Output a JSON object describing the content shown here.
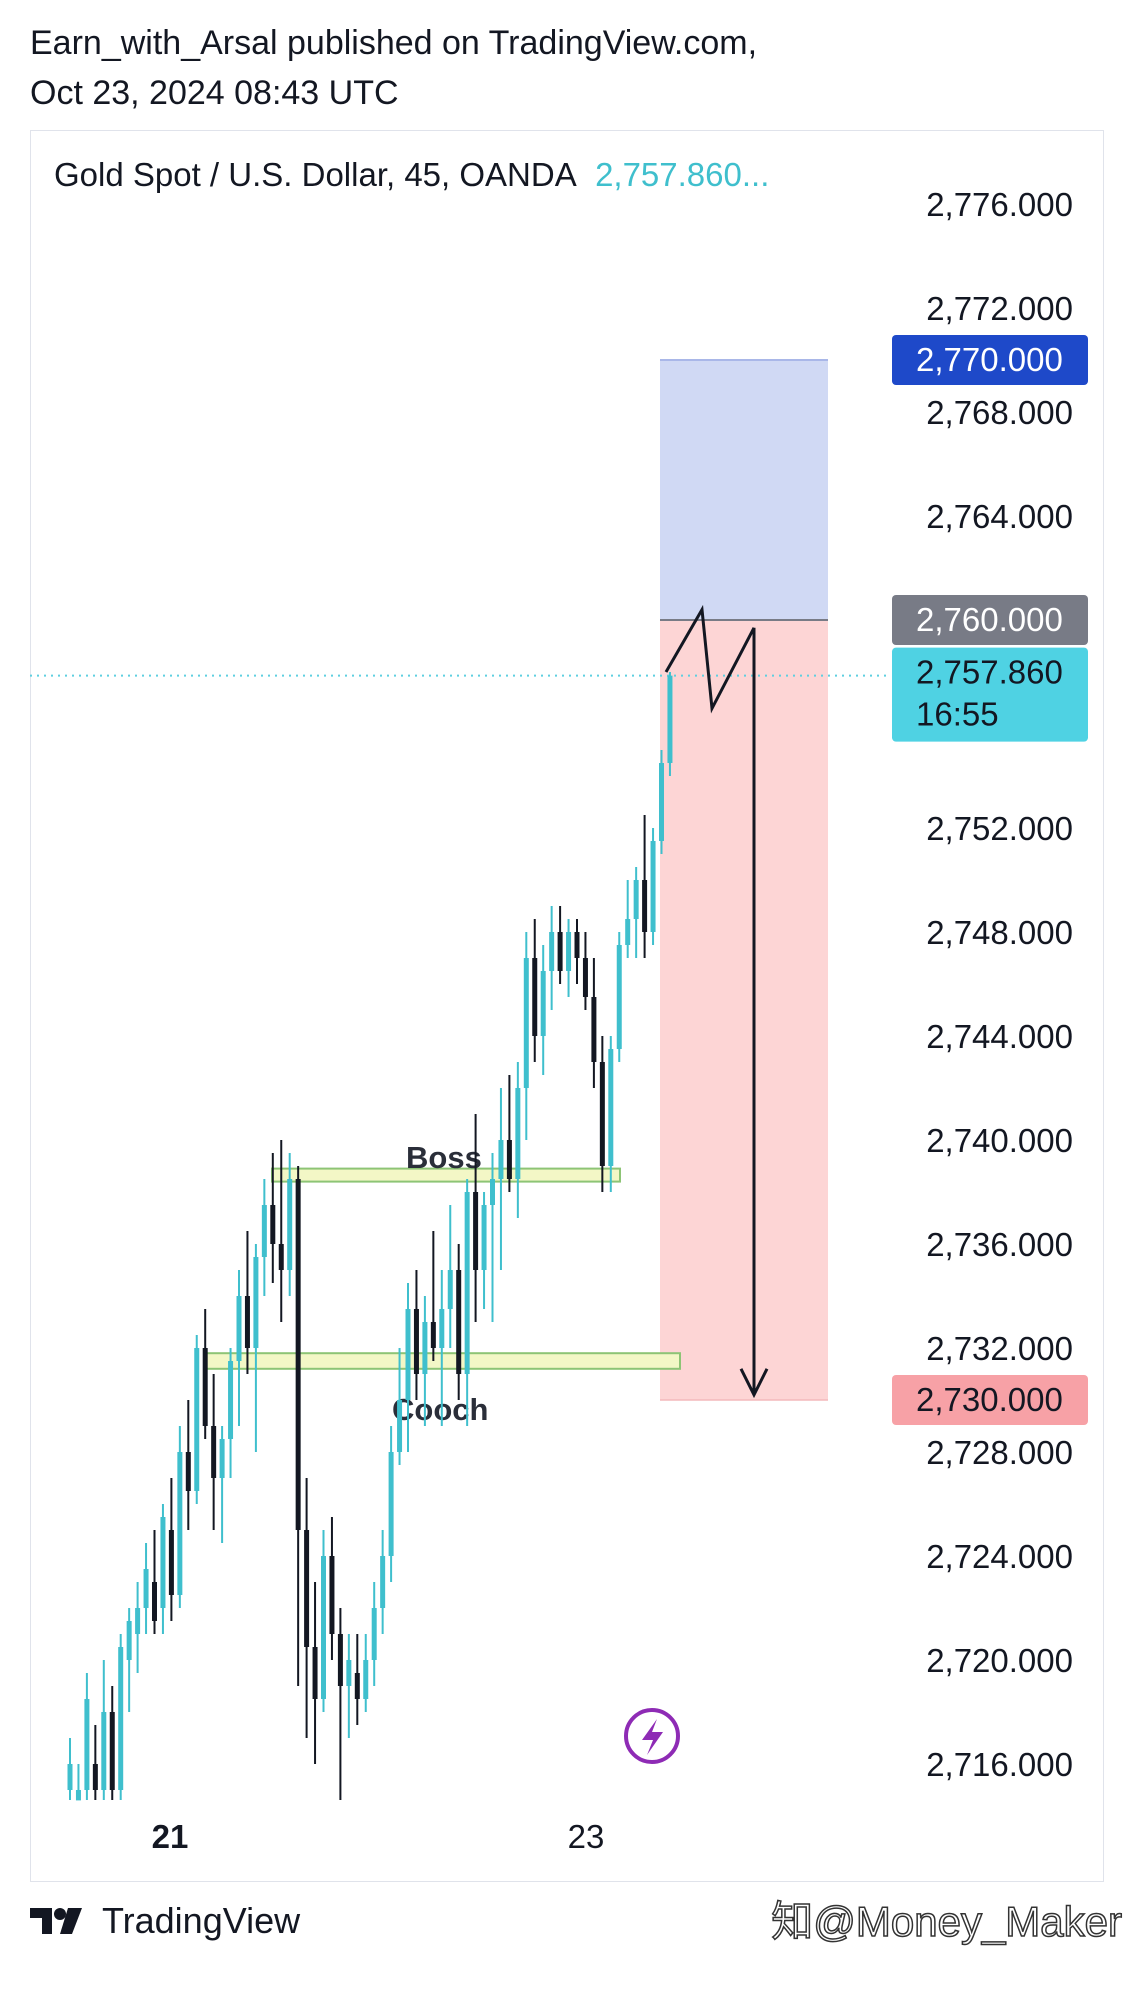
{
  "publish": {
    "line1": "Earn_with_Arsal published on TradingView.com,",
    "line2": "Oct 23, 2024 08:43 UTC"
  },
  "header": {
    "symbol": "Gold Spot / U.S. Dollar, 45, OANDA",
    "price": "2,757.860..."
  },
  "colors": {
    "bull": "#3fbfcd",
    "bear": "#131722",
    "target_zone": "#d0d9f4",
    "stop_zone": "#fdd5d5",
    "price_line": "#5ecfe0",
    "tag_target": "#1e49c9",
    "tag_entry": "#787b86",
    "tag_current": "#4fd2e3",
    "tag_stop": "#f7a1a6",
    "zone_yellow": "#f3f7c6",
    "zone_border": "#8dc475",
    "lightning": "#8e2bb5"
  },
  "footer": {
    "brand": "TradingView",
    "logo": "tradingview-logo-icon"
  },
  "watermark": "知@Money_Maker",
  "chart_data": {
    "type": "candlestick",
    "symbol": "Gold Spot / U.S. Dollar",
    "interval": "45",
    "broker": "OANDA",
    "ylim": [
      2714.5,
      2778.5
    ],
    "y_ticks": [
      2776,
      2772,
      2768,
      2764,
      2752,
      2748,
      2744,
      2740,
      2736,
      2732,
      2728,
      2724,
      2720,
      2716
    ],
    "y_tick_labels": [
      "2,776.000",
      "2,772.000",
      "2,768.000",
      "2,764.000",
      "2,752.000",
      "2,748.000",
      "2,744.000",
      "2,740.000",
      "2,736.000",
      "2,732.000",
      "2,728.000",
      "2,724.000",
      "2,720.000",
      "2,716.000"
    ],
    "x_labels": [
      {
        "label": "21",
        "index": 7,
        "bold": true
      },
      {
        "label": "23",
        "index": 46,
        "bold": false
      }
    ],
    "price_tags": [
      {
        "label": "2,770.000",
        "value": 2770,
        "color": "#1e49c9",
        "text_color": "#ffffff"
      },
      {
        "label": "2,760.000",
        "value": 2760,
        "color": "#787b86",
        "text_color": "#ffffff"
      },
      {
        "label": "2,757.860",
        "sub": "16:55",
        "value": 2757.86,
        "color": "#4fd2e3",
        "text_color": "#131722"
      },
      {
        "label": "2,730.000",
        "value": 2730,
        "color": "#f7a1a6",
        "text_color": "#131722"
      }
    ],
    "current_price": 2757.86,
    "position": {
      "type": "short",
      "entry": 2760,
      "target": 2730,
      "stop": 2770,
      "start_index": 55,
      "end_index": 70
    },
    "annotations": [
      {
        "text": "Boss",
        "zone": [
          2738.4,
          2738.9
        ],
        "start_index": 20,
        "end_index": 52
      },
      {
        "text": "Cooch",
        "zone": [
          2731.2,
          2731.8
        ],
        "start_index": 16,
        "end_index": 57
      }
    ],
    "candles": [
      {
        "o": 2715,
        "h": 2717,
        "l": 2714.4,
        "c": 2716
      },
      {
        "o": 2714.6,
        "h": 2716,
        "l": 2714.4,
        "c": 2715
      },
      {
        "o": 2715,
        "h": 2719.5,
        "l": 2714.4,
        "c": 2718.5
      },
      {
        "o": 2716,
        "h": 2717.5,
        "l": 2714.4,
        "c": 2715
      },
      {
        "o": 2715,
        "h": 2720,
        "l": 2714.4,
        "c": 2718
      },
      {
        "o": 2718,
        "h": 2719,
        "l": 2714.4,
        "c": 2715
      },
      {
        "o": 2715,
        "h": 2721,
        "l": 2714.5,
        "c": 2720.5
      },
      {
        "o": 2720,
        "h": 2722,
        "l": 2718,
        "c": 2721.5
      },
      {
        "o": 2721,
        "h": 2723,
        "l": 2719.5,
        "c": 2722
      },
      {
        "o": 2722,
        "h": 2724.5,
        "l": 2721,
        "c": 2723.5
      },
      {
        "o": 2723,
        "h": 2725,
        "l": 2721,
        "c": 2721.5
      },
      {
        "o": 2722,
        "h": 2726,
        "l": 2721,
        "c": 2725.5
      },
      {
        "o": 2725,
        "h": 2727,
        "l": 2721.5,
        "c": 2722.5
      },
      {
        "o": 2722.5,
        "h": 2729,
        "l": 2722,
        "c": 2728
      },
      {
        "o": 2728,
        "h": 2730,
        "l": 2725,
        "c": 2726.5
      },
      {
        "o": 2726.5,
        "h": 2732.5,
        "l": 2726,
        "c": 2732
      },
      {
        "o": 2732,
        "h": 2733.5,
        "l": 2728.5,
        "c": 2729
      },
      {
        "o": 2729,
        "h": 2731,
        "l": 2725,
        "c": 2727
      },
      {
        "o": 2727,
        "h": 2729,
        "l": 2724.5,
        "c": 2728.5
      },
      {
        "o": 2728.5,
        "h": 2732,
        "l": 2727,
        "c": 2731.5
      },
      {
        "o": 2731.5,
        "h": 2735,
        "l": 2729,
        "c": 2734
      },
      {
        "o": 2734,
        "h": 2736.5,
        "l": 2731,
        "c": 2732
      },
      {
        "o": 2732,
        "h": 2736,
        "l": 2728,
        "c": 2735.5
      },
      {
        "o": 2735.5,
        "h": 2738.5,
        "l": 2734,
        "c": 2737.5
      },
      {
        "o": 2737.5,
        "h": 2739.5,
        "l": 2734.5,
        "c": 2736
      },
      {
        "o": 2736,
        "h": 2740,
        "l": 2733,
        "c": 2735
      },
      {
        "o": 2735,
        "h": 2739.5,
        "l": 2734,
        "c": 2738.5
      },
      {
        "o": 2738.5,
        "h": 2739,
        "l": 2719,
        "c": 2725
      },
      {
        "o": 2725,
        "h": 2727,
        "l": 2717,
        "c": 2720.5
      },
      {
        "o": 2720.5,
        "h": 2723,
        "l": 2716,
        "c": 2718.5
      },
      {
        "o": 2718.5,
        "h": 2725,
        "l": 2718,
        "c": 2724
      },
      {
        "o": 2724,
        "h": 2725.5,
        "l": 2720,
        "c": 2721
      },
      {
        "o": 2721,
        "h": 2722,
        "l": 2714.4,
        "c": 2719
      },
      {
        "o": 2719,
        "h": 2721,
        "l": 2717,
        "c": 2720
      },
      {
        "o": 2719.5,
        "h": 2721,
        "l": 2717.5,
        "c": 2718.5
      },
      {
        "o": 2718.5,
        "h": 2721,
        "l": 2718,
        "c": 2720
      },
      {
        "o": 2720,
        "h": 2723,
        "l": 2719,
        "c": 2722
      },
      {
        "o": 2722,
        "h": 2725,
        "l": 2721,
        "c": 2724
      },
      {
        "o": 2724,
        "h": 2729,
        "l": 2723,
        "c": 2728
      },
      {
        "o": 2728,
        "h": 2732,
        "l": 2727.5,
        "c": 2730
      },
      {
        "o": 2730,
        "h": 2734.5,
        "l": 2728,
        "c": 2733.5
      },
      {
        "o": 2733.5,
        "h": 2735,
        "l": 2730,
        "c": 2731
      },
      {
        "o": 2731,
        "h": 2734,
        "l": 2729,
        "c": 2733
      },
      {
        "o": 2733,
        "h": 2736.5,
        "l": 2731.5,
        "c": 2732
      },
      {
        "o": 2732,
        "h": 2735,
        "l": 2729,
        "c": 2733.5
      },
      {
        "o": 2733.5,
        "h": 2737.5,
        "l": 2732,
        "c": 2735
      },
      {
        "o": 2735,
        "h": 2736,
        "l": 2730,
        "c": 2731
      },
      {
        "o": 2731,
        "h": 2738.5,
        "l": 2729,
        "c": 2738
      },
      {
        "o": 2738,
        "h": 2741,
        "l": 2733,
        "c": 2735
      },
      {
        "o": 2735,
        "h": 2738,
        "l": 2733.5,
        "c": 2737.5
      },
      {
        "o": 2737.5,
        "h": 2739.5,
        "l": 2733,
        "c": 2738.5
      },
      {
        "o": 2738.5,
        "h": 2742,
        "l": 2735,
        "c": 2740
      },
      {
        "o": 2740,
        "h": 2742.5,
        "l": 2738,
        "c": 2738.5
      },
      {
        "o": 2738.5,
        "h": 2743,
        "l": 2737,
        "c": 2742
      },
      {
        "o": 2742,
        "h": 2748,
        "l": 2740,
        "c": 2747
      },
      {
        "o": 2747,
        "h": 2748.5,
        "l": 2743,
        "c": 2744
      },
      {
        "o": 2744,
        "h": 2747.5,
        "l": 2742.5,
        "c": 2746.5
      },
      {
        "o": 2746.5,
        "h": 2749,
        "l": 2745,
        "c": 2748
      },
      {
        "o": 2748,
        "h": 2749,
        "l": 2746,
        "c": 2746.5
      },
      {
        "o": 2746.5,
        "h": 2748.5,
        "l": 2745.5,
        "c": 2748
      },
      {
        "o": 2748,
        "h": 2748.5,
        "l": 2746,
        "c": 2747
      },
      {
        "o": 2747,
        "h": 2748,
        "l": 2745,
        "c": 2745.5
      },
      {
        "o": 2745.5,
        "h": 2747,
        "l": 2742,
        "c": 2743
      },
      {
        "o": 2743,
        "h": 2744,
        "l": 2738,
        "c": 2739
      },
      {
        "o": 2739,
        "h": 2744,
        "l": 2738,
        "c": 2743.5
      },
      {
        "o": 2743.5,
        "h": 2748,
        "l": 2743,
        "c": 2747.5
      },
      {
        "o": 2747.5,
        "h": 2750,
        "l": 2747,
        "c": 2748.5
      },
      {
        "o": 2748.5,
        "h": 2750.5,
        "l": 2747,
        "c": 2750
      },
      {
        "o": 2750,
        "h": 2752.5,
        "l": 2747,
        "c": 2748
      },
      {
        "o": 2748,
        "h": 2752,
        "l": 2747.5,
        "c": 2751.5
      },
      {
        "o": 2751.5,
        "h": 2755,
        "l": 2751,
        "c": 2754.5
      },
      {
        "o": 2754.5,
        "h": 2758,
        "l": 2754,
        "c": 2757.86
      }
    ]
  }
}
